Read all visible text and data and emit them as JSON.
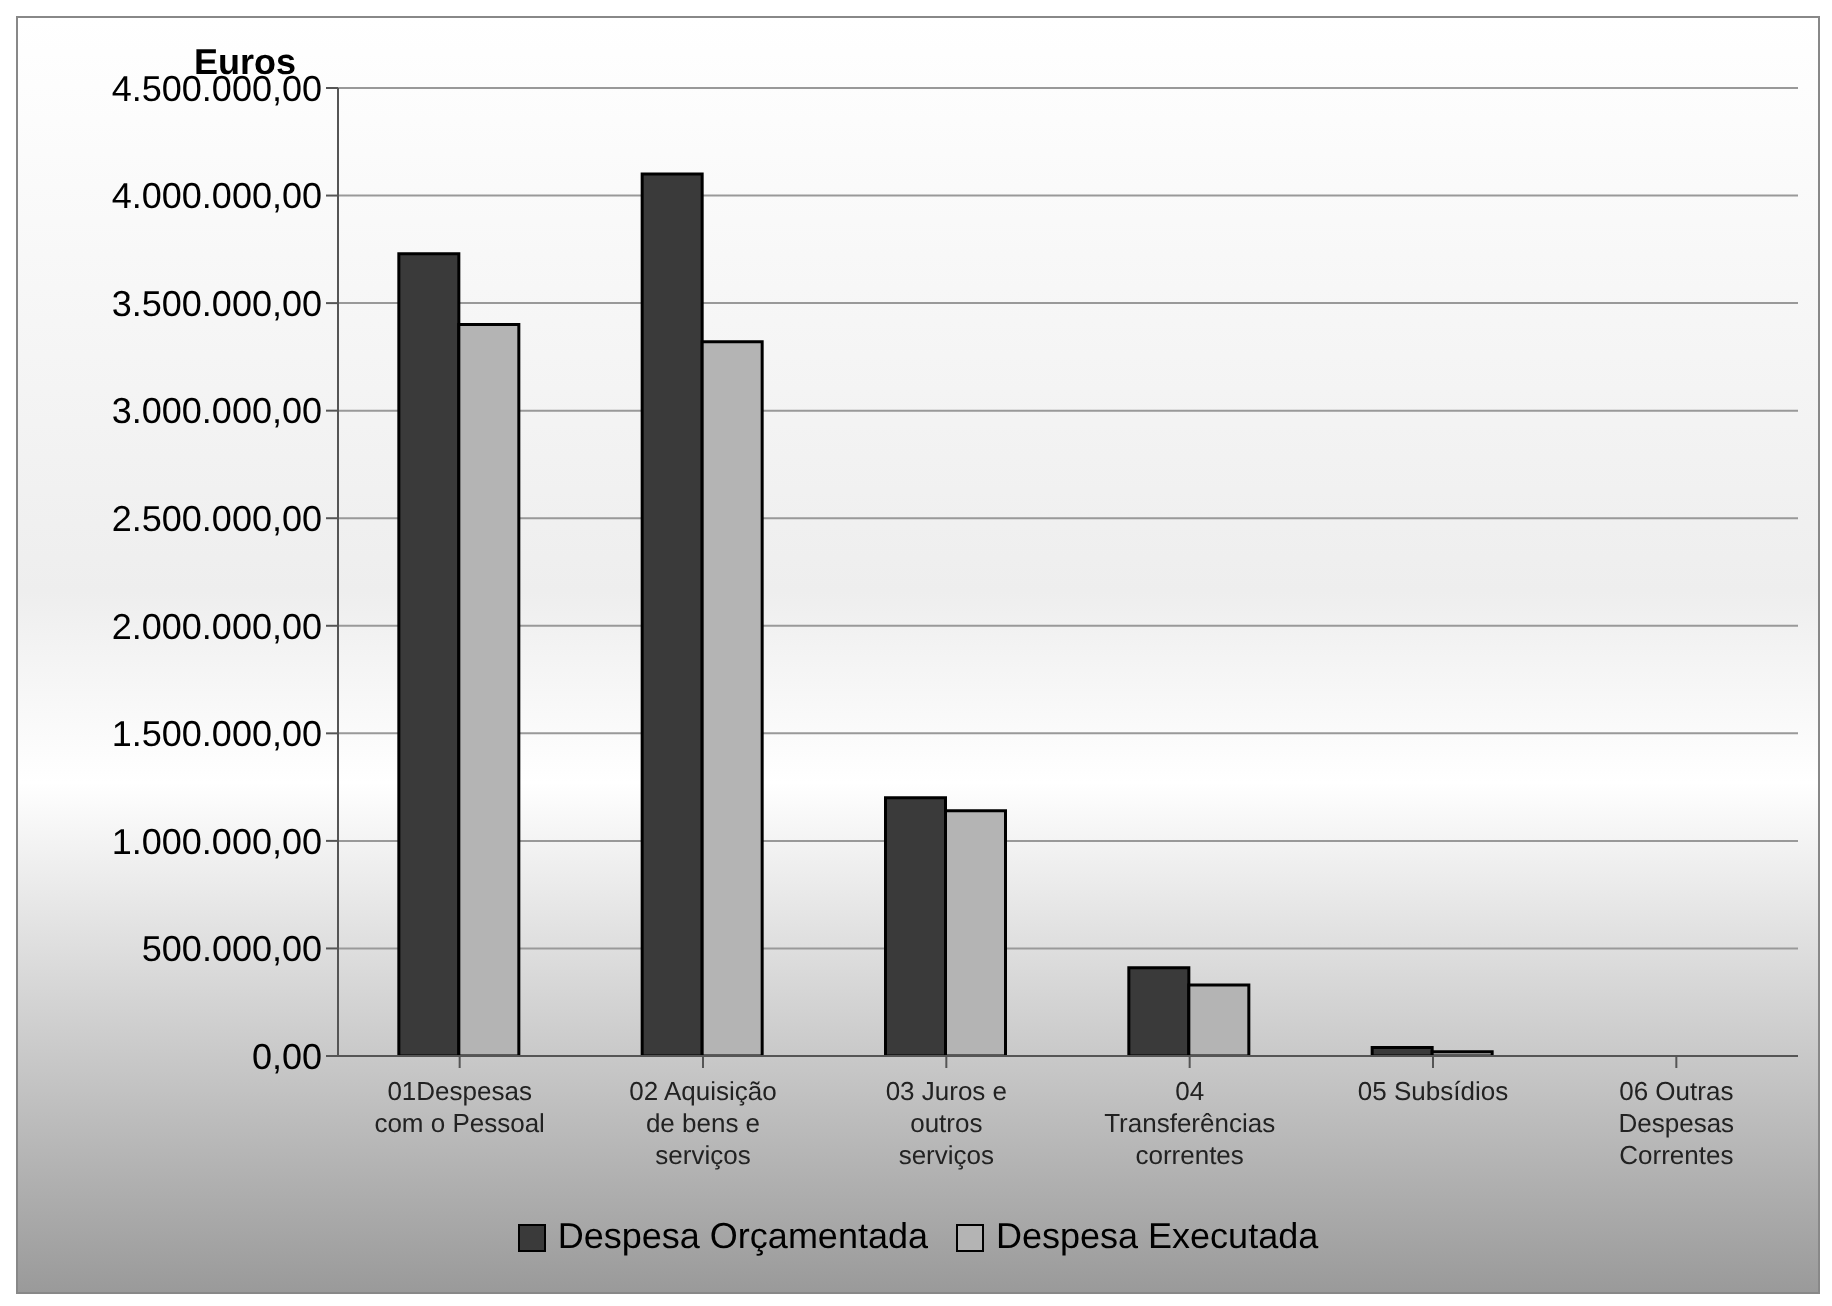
{
  "chart_data": {
    "type": "bar",
    "ylabel": "Euros",
    "categories": [
      "01Despesas com o Pessoal",
      "02 Aquisição de bens e serviços",
      "03 Juros e outros serviços",
      "04 Transferências correntes",
      "05 Subsídios",
      "06 Outras Despesas Correntes"
    ],
    "series": [
      {
        "name": "Despesa Orçamentada",
        "color": "#3a3a3a",
        "values": [
          3730000,
          4100000,
          1200000,
          410000,
          40000,
          0
        ]
      },
      {
        "name": "Despesa Executada",
        "color": "#b4b4b4",
        "values": [
          3400000,
          3320000,
          1140000,
          330000,
          20000,
          0
        ]
      }
    ],
    "ylim": [
      0,
      4500000
    ],
    "yticks": [
      {
        "value": 0,
        "label": "0,00"
      },
      {
        "value": 500000,
        "label": "500.000,00"
      },
      {
        "value": 1000000,
        "label": "1.000.000,00"
      },
      {
        "value": 1500000,
        "label": "1.500.000,00"
      },
      {
        "value": 2000000,
        "label": "2.000.000,00"
      },
      {
        "value": 2500000,
        "label": "2.500.000,00"
      },
      {
        "value": 3000000,
        "label": "3.000.000,00"
      },
      {
        "value": 3500000,
        "label": "3.500.000,00"
      },
      {
        "value": 4000000,
        "label": "4.000.000,00"
      },
      {
        "value": 4500000,
        "label": "4.500.000,00"
      }
    ],
    "grid": "y",
    "legend": "bottom"
  }
}
